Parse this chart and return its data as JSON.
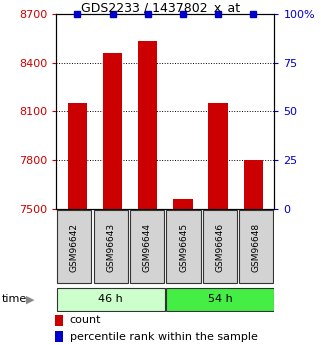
{
  "title": "GDS2233 / 1437802_x_at",
  "categories": [
    "GSM96642",
    "GSM96643",
    "GSM96644",
    "GSM96645",
    "GSM96646",
    "GSM96648"
  ],
  "count_values": [
    8150,
    8460,
    8530,
    7560,
    8150,
    7800
  ],
  "percentile_values": [
    100,
    100,
    100,
    100,
    100,
    100
  ],
  "ylim_left": [
    7500,
    8700
  ],
  "ylim_right": [
    0,
    100
  ],
  "yticks_left": [
    7500,
    7800,
    8100,
    8400,
    8700
  ],
  "yticks_right": [
    0,
    25,
    50,
    75,
    100
  ],
  "right_tick_labels": [
    "0",
    "25",
    "50",
    "75",
    "100%"
  ],
  "bar_color": "#cc0000",
  "percentile_color": "#0000cc",
  "group1_label": "46 h",
  "group2_label": "54 h",
  "group1_color": "#ccffcc",
  "group2_color": "#44ee44",
  "time_label": "time",
  "legend_count": "count",
  "legend_percentile": "percentile rank within the sample",
  "bar_width": 0.55,
  "base_value": 7500,
  "figwidth": 3.21,
  "figheight": 3.45,
  "dpi": 100
}
